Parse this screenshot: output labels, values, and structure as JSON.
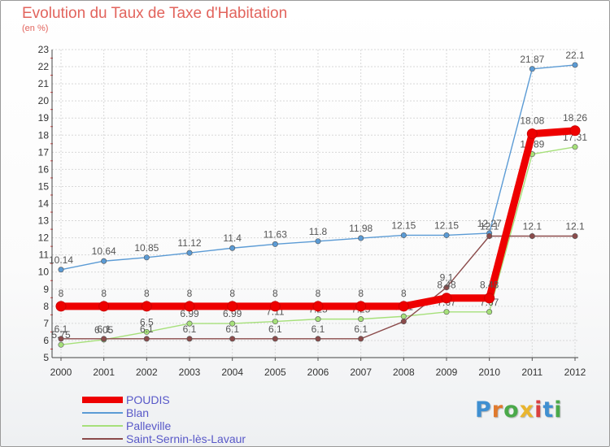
{
  "title": "Evolution du Taux de Taxe d'Habitation",
  "unit": "(en %)",
  "logo": {
    "text": "Proxiti",
    "colors": [
      "#3f8fd1",
      "#e07a2e",
      "#4aa94a",
      "#e9b52e",
      "#d94040",
      "#3f8fd1",
      "#4aa94a"
    ]
  },
  "chart_data": {
    "type": "line",
    "title": "Evolution du Taux de Taxe d'Habitation",
    "ylabel": "(en %)",
    "x": [
      "2000",
      "2001",
      "2002",
      "2003",
      "2004",
      "2005",
      "2006",
      "2007",
      "2008",
      "2009",
      "2010",
      "2011",
      "2012"
    ],
    "ylim": [
      5,
      23
    ],
    "yticks": [
      5,
      6,
      7,
      8,
      9,
      10,
      11,
      12,
      13,
      14,
      15,
      16,
      17,
      18,
      19,
      20,
      21,
      22,
      23
    ],
    "grid": true,
    "legend": "bottom-left",
    "series": [
      {
        "name": "Blan",
        "color": "#5b9bd5",
        "values": [
          10.14,
          10.64,
          10.85,
          11.12,
          11.4,
          11.63,
          11.8,
          11.98,
          12.15,
          12.15,
          12.27,
          21.87,
          22.1
        ],
        "labels": [
          "10.14",
          "10.64",
          "10.85",
          "11.12",
          "11.4",
          "11.63",
          "11.8",
          "11.98",
          "12.15",
          "12.15",
          "12.27",
          "21.87",
          "22.1"
        ]
      },
      {
        "name": "Palleville",
        "color": "#a6e07a",
        "values": [
          5.75,
          6.05,
          6.5,
          6.99,
          6.99,
          7.11,
          7.25,
          7.25,
          7.41,
          7.67,
          7.67,
          16.89,
          17.31
        ],
        "labels": [
          "5.75",
          "6.05",
          "6.5",
          "6.99",
          "6.99",
          "7.11",
          "7.25",
          "7.25",
          "7.41",
          "7.67",
          "7.67",
          "16.89",
          "17.31"
        ]
      },
      {
        "name": "Saint-Sernin-lès-Lavaur",
        "color": "#8b4b4b",
        "values": [
          6.1,
          6.1,
          6.1,
          6.1,
          6.1,
          6.1,
          6.1,
          6.1,
          7.11,
          9.1,
          12.1,
          12.1,
          12.1
        ],
        "labels": [
          "6.1",
          "6.1",
          "6.1",
          "6.1",
          "6.1",
          "6.1",
          "6.1",
          "6.1",
          "",
          "9.1",
          "12.1",
          "12.1",
          "12.1"
        ]
      },
      {
        "name": "POUDIS",
        "color": "#ee0000",
        "values": [
          8,
          8,
          8,
          8,
          8,
          8,
          8,
          8,
          8,
          8.48,
          8.48,
          18.08,
          18.26
        ],
        "labels": [
          "8",
          "8",
          "8",
          "8",
          "8",
          "8",
          "8",
          "8",
          "8",
          "8.48",
          "8.48",
          "18.08",
          "18.26"
        ]
      }
    ],
    "legend_entries": [
      {
        "name": "POUDIS",
        "color": "#ee0000",
        "width": 8
      },
      {
        "name": "Blan",
        "color": "#5b9bd5",
        "width": 2
      },
      {
        "name": "Palleville",
        "color": "#a6e07a",
        "width": 2
      },
      {
        "name": "Saint-Sernin-lès-Lavaur",
        "color": "#8b4b4b",
        "width": 2
      }
    ]
  }
}
